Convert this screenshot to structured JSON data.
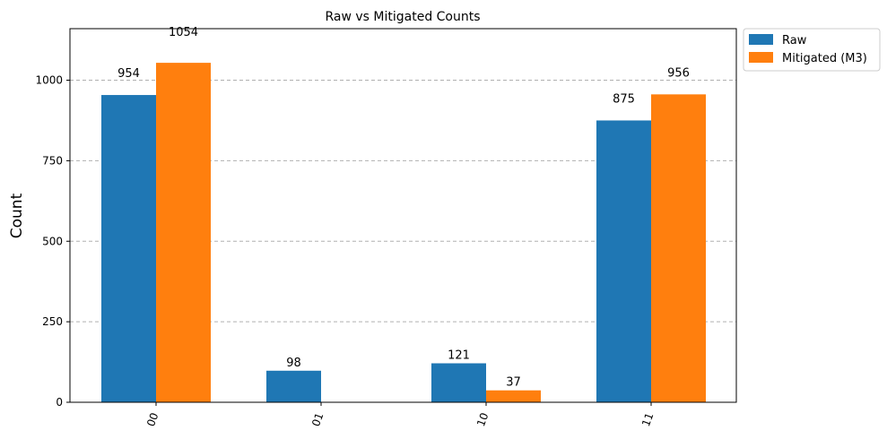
{
  "chart_data": {
    "type": "bar",
    "title": "Raw vs Mitigated Counts",
    "xlabel": "",
    "ylabel": "Count",
    "categories": [
      "00",
      "01",
      "10",
      "11"
    ],
    "series": [
      {
        "name": "Raw",
        "values": [
          954,
          98,
          121,
          875
        ],
        "labels": [
          "954",
          "98",
          "121",
          "875"
        ],
        "color": "#1f77b4"
      },
      {
        "name": "Mitigated (M3)",
        "values": [
          1054,
          0,
          37,
          956
        ],
        "labels": [
          "1054",
          "",
          "37",
          "956"
        ],
        "color": "#ff7f0e"
      }
    ],
    "ylim": [
      0,
      1160
    ],
    "yticks": [
      0,
      250,
      500,
      750,
      1000
    ],
    "grid": true,
    "grid_style": "dashed",
    "legend_position": "outside-top-right",
    "xtick_rotation": 70
  }
}
